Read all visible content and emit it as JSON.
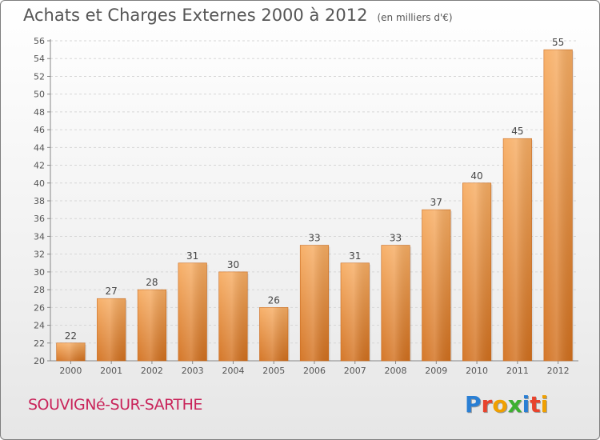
{
  "header": {
    "title": "Achats et Charges Externes 2000 à 2012",
    "subtitle": "(en milliers d'€)"
  },
  "footer": {
    "commune": "SOUVIGNé-SUR-SARTHE",
    "brand": [
      "P",
      "r",
      "o",
      "x",
      "i",
      "t",
      "i"
    ],
    "brand_colors": [
      "#2a7fd4",
      "#e8432d",
      "#f0a000",
      "#3cb030",
      "#2a7fd4",
      "#e8432d",
      "#f0a000"
    ]
  },
  "chart_data": {
    "type": "bar",
    "title": "Achats et Charges Externes 2000 à 2012",
    "subtitle": "(en milliers d'€)",
    "xlabel": "",
    "ylabel": "",
    "categories": [
      "2000",
      "2001",
      "2002",
      "2003",
      "2004",
      "2005",
      "2006",
      "2007",
      "2008",
      "2009",
      "2010",
      "2011",
      "2012"
    ],
    "values": [
      22,
      27,
      28,
      31,
      30,
      26,
      33,
      31,
      33,
      37,
      40,
      45,
      55
    ],
    "data_labels": [
      "22",
      "27",
      "28",
      "31",
      "30",
      "26",
      "33",
      "31",
      "33",
      "37",
      "40",
      "45",
      "55"
    ],
    "ylim": [
      20,
      56
    ],
    "yticks": [
      "20",
      "22",
      "24",
      "26",
      "28",
      "30",
      "32",
      "34",
      "36",
      "38",
      "40",
      "42",
      "44",
      "46",
      "48",
      "50",
      "52",
      "54",
      "56"
    ],
    "grid": true,
    "bar_color": "#f08a2c",
    "bar_color_light": "#f7ad63",
    "bar_color_dark": "#d2701e"
  }
}
